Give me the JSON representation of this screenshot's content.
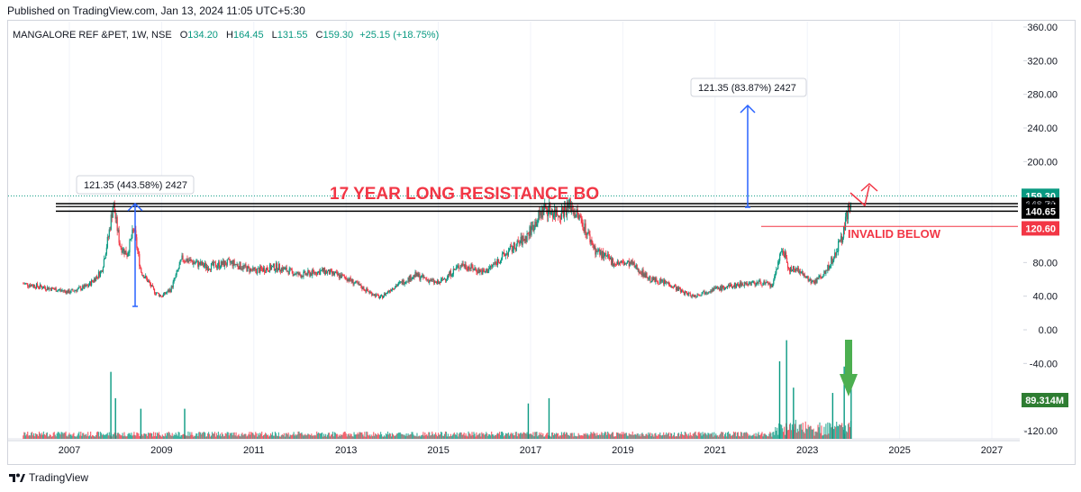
{
  "header": {
    "published": "Published on TradingView.com, Jan 13, 2024 11:05 UTC+5:30"
  },
  "legend": {
    "symbol": "MANGALORE REF &PET, 1W, NSE",
    "o_label": "O",
    "o_value": "134.20",
    "h_label": "H",
    "h_value": "164.45",
    "l_label": "L",
    "l_value": "131.55",
    "c_label": "C",
    "c_value": "159.30",
    "change": "+25.15 (+18.75%)"
  },
  "footer": {
    "brand": "TradingView"
  },
  "colors": {
    "up": "#089981",
    "down": "#f23645",
    "black": "#000000",
    "blue": "#2962ff",
    "green_arrow": "#4caf50",
    "red_text": "#f23645"
  },
  "chart_data": {
    "type": "candlestick",
    "x_ticks": [
      "2007",
      "2009",
      "2011",
      "2013",
      "2015",
      "2017",
      "2019",
      "2021",
      "2023",
      "2025",
      "2027"
    ],
    "y_ticks": [
      "360.00",
      "320.00",
      "280.00",
      "240.00",
      "200.00",
      "160.00",
      "120.00",
      "80.00",
      "40.00",
      "0.00",
      "-40.00",
      "-80.00",
      "-120.00"
    ],
    "price_labels": [
      {
        "text": "159.30",
        "value": 159.3,
        "style": "green"
      },
      {
        "text": "148.70",
        "value": 148.7,
        "style": "black"
      },
      {
        "text": "148.55",
        "value": 148.55,
        "style": "plain"
      },
      {
        "text": "142.05",
        "value": 142.05,
        "style": "plain"
      },
      {
        "text": "140.65",
        "value": 140.65,
        "style": "black"
      },
      {
        "text": "120.60",
        "value": 120.6,
        "style": "red"
      }
    ],
    "volume_label": "89.314M",
    "annotations": {
      "resistance_text": "17 YEAR LONG RESISTANCE BO",
      "invalid_text": "INVALID BELOW",
      "measure_left": "121.35 (443.58%) 2427",
      "measure_right": "121.35 (83.87%) 2427"
    },
    "resistance_levels": [
      150,
      146.5,
      141
    ],
    "invalid_level": 123,
    "price_series": [
      [
        2006.0,
        55
      ],
      [
        2006.5,
        50
      ],
      [
        2007.0,
        45
      ],
      [
        2007.4,
        52
      ],
      [
        2007.7,
        70
      ],
      [
        2007.85,
        112
      ],
      [
        2007.95,
        150
      ],
      [
        2008.1,
        100
      ],
      [
        2008.25,
        90
      ],
      [
        2008.4,
        120
      ],
      [
        2008.55,
        70
      ],
      [
        2008.7,
        58
      ],
      [
        2008.85,
        45
      ],
      [
        2009.0,
        40
      ],
      [
        2009.2,
        48
      ],
      [
        2009.45,
        85
      ],
      [
        2009.7,
        80
      ],
      [
        2010.0,
        75
      ],
      [
        2010.5,
        80
      ],
      [
        2011.0,
        70
      ],
      [
        2011.5,
        75
      ],
      [
        2012.0,
        65
      ],
      [
        2012.5,
        70
      ],
      [
        2013.0,
        62
      ],
      [
        2013.5,
        45
      ],
      [
        2013.75,
        38
      ],
      [
        2014.0,
        50
      ],
      [
        2014.5,
        65
      ],
      [
        2015.0,
        55
      ],
      [
        2015.5,
        78
      ],
      [
        2016.0,
        68
      ],
      [
        2016.5,
        92
      ],
      [
        2016.9,
        110
      ],
      [
        2017.3,
        145
      ],
      [
        2017.6,
        138
      ],
      [
        2017.85,
        148
      ],
      [
        2018.1,
        130
      ],
      [
        2018.4,
        95
      ],
      [
        2018.8,
        80
      ],
      [
        2019.2,
        78
      ],
      [
        2019.6,
        60
      ],
      [
        2020.0,
        55
      ],
      [
        2020.3,
        45
      ],
      [
        2020.55,
        40
      ],
      [
        2020.9,
        48
      ],
      [
        2021.2,
        50
      ],
      [
        2021.6,
        55
      ],
      [
        2022.0,
        56
      ],
      [
        2022.25,
        52
      ],
      [
        2022.45,
        100
      ],
      [
        2022.6,
        72
      ],
      [
        2022.85,
        70
      ],
      [
        2023.1,
        55
      ],
      [
        2023.35,
        65
      ],
      [
        2023.55,
        85
      ],
      [
        2023.75,
        110
      ],
      [
        2023.95,
        159.3
      ]
    ],
    "volume_spikes": [
      [
        2007.9,
        0.55
      ],
      [
        2008.0,
        0.3
      ],
      [
        2008.55,
        0.2
      ],
      [
        2009.5,
        0.2
      ],
      [
        2016.95,
        0.25
      ],
      [
        2017.4,
        0.3
      ],
      [
        2022.4,
        0.65
      ],
      [
        2022.55,
        0.85
      ],
      [
        2022.7,
        0.4
      ],
      [
        2023.55,
        0.35
      ],
      [
        2023.8,
        0.6
      ],
      [
        2023.95,
        0.45
      ]
    ]
  }
}
